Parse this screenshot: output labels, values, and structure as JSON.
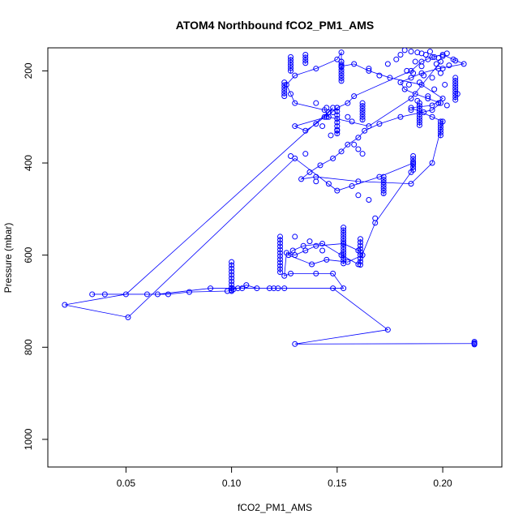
{
  "chart_data": {
    "type": "scatter",
    "title": "ATOM4 Northbound fCO2_PM1_AMS",
    "xlabel": "fCO2_PM1_AMS",
    "ylabel": "Pressure (mbar)",
    "xlim": [
      0.013,
      0.228
    ],
    "ylim": [
      1060,
      150
    ],
    "y_inverted": true,
    "x_ticks": [
      0.05,
      0.1,
      0.15,
      0.2
    ],
    "x_tick_labels": [
      "0.05",
      "0.10",
      "0.15",
      "0.20"
    ],
    "y_ticks": [
      200,
      400,
      600,
      800,
      1000
    ],
    "y_tick_labels": [
      "200",
      "400",
      "600",
      "800",
      "1000"
    ],
    "grid": false,
    "legend": "none",
    "series_color": "#0000ff",
    "series": [
      {
        "name": "fCO2_PM1_AMS",
        "style": "points-and-lines",
        "x": [
          0.215,
          0.13,
          0.174,
          0.148,
          0.12,
          0.105,
          0.1,
          0.09,
          0.065,
          0.04,
          0.034,
          0.06,
          0.07,
          0.08,
          0.098,
          0.1,
          0.101,
          0.103,
          0.107,
          0.112,
          0.118,
          0.122,
          0.125,
          0.153,
          0.148,
          0.14,
          0.128,
          0.125,
          0.126,
          0.13,
          0.135,
          0.14,
          0.153,
          0.16,
          0.162,
          0.155,
          0.145,
          0.138,
          0.127,
          0.129,
          0.134,
          0.143,
          0.152,
          0.16,
          0.168,
          0.185,
          0.186,
          0.17,
          0.15,
          0.13,
          0.051,
          0.021,
          0.05,
          0.148,
          0.146,
          0.144,
          0.14,
          0.135,
          0.13,
          0.145,
          0.15,
          0.155,
          0.158,
          0.185,
          0.19,
          0.195,
          0.2,
          0.205,
          0.21,
          0.198,
          0.19,
          0.185,
          0.18,
          0.182,
          0.187,
          0.193,
          0.199,
          0.195,
          0.18,
          0.17,
          0.163,
          0.16,
          0.155,
          0.152,
          0.148,
          0.142,
          0.137,
          0.133,
          0.14,
          0.16,
          0.185,
          0.195,
          0.2,
          0.185,
          0.195,
          0.2,
          0.19,
          0.175,
          0.165,
          0.158,
          0.152,
          0.152,
          0.152,
          0.15,
          0.14,
          0.13,
          0.126,
          0.128,
          0.13,
          0.144,
          0.146,
          0.165,
          0.185,
          0.199
        ],
        "y": [
          792,
          793,
          762,
          672,
          672,
          672,
          672,
          672,
          685,
          685,
          685,
          685,
          685,
          680,
          678,
          676,
          674,
          672,
          665,
          672,
          672,
          672,
          672,
          672,
          640,
          640,
          640,
          645,
          595,
          600,
          590,
          580,
          575,
          590,
          600,
          615,
          610,
          620,
          600,
          590,
          580,
          575,
          600,
          620,
          530,
          420,
          400,
          430,
          460,
          390,
          735,
          708,
          685,
          280,
          290,
          300,
          315,
          330,
          320,
          300,
          280,
          270,
          255,
          200,
          180,
          170,
          165,
          175,
          185,
          195,
          205,
          215,
          225,
          240,
          250,
          260,
          270,
          285,
          300,
          315,
          330,
          345,
          360,
          375,
          390,
          405,
          420,
          435,
          430,
          440,
          445,
          400,
          310,
          280,
          275,
          260,
          230,
          215,
          200,
          185,
          190,
          180,
          160,
          175,
          195,
          210,
          230,
          250,
          270,
          285,
          300,
          320,
          260,
          180
        ]
      }
    ],
    "stacked_runs": [
      {
        "x": 0.125,
        "y_start": 225,
        "y_end": 255,
        "step": 6
      },
      {
        "x": 0.128,
        "y_start": 170,
        "y_end": 205,
        "step": 6
      },
      {
        "x": 0.135,
        "y_start": 165,
        "y_end": 185,
        "step": 6
      },
      {
        "x": 0.152,
        "y_start": 180,
        "y_end": 225,
        "step": 6
      },
      {
        "x": 0.15,
        "y_start": 280,
        "y_end": 340,
        "step": 8
      },
      {
        "x": 0.153,
        "y_start": 540,
        "y_end": 620,
        "step": 6
      },
      {
        "x": 0.199,
        "y_start": 310,
        "y_end": 345,
        "step": 6
      },
      {
        "x": 0.206,
        "y_start": 215,
        "y_end": 265,
        "step": 6
      },
      {
        "x": 0.186,
        "y_start": 385,
        "y_end": 420,
        "step": 6
      },
      {
        "x": 0.172,
        "y_start": 430,
        "y_end": 470,
        "step": 6
      },
      {
        "x": 0.1,
        "y_start": 615,
        "y_end": 680,
        "step": 7
      },
      {
        "x": 0.123,
        "y_start": 560,
        "y_end": 640,
        "step": 7
      },
      {
        "x": 0.161,
        "y_start": 565,
        "y_end": 625,
        "step": 7
      },
      {
        "x": 0.162,
        "y_start": 270,
        "y_end": 310,
        "step": 6
      },
      {
        "x": 0.189,
        "y_start": 270,
        "y_end": 320,
        "step": 6
      },
      {
        "x": 0.215,
        "y_start": 788,
        "y_end": 795,
        "step": 3
      }
    ],
    "cluster_points": {
      "x": [
        0.182,
        0.185,
        0.188,
        0.19,
        0.192,
        0.194,
        0.196,
        0.198,
        0.2,
        0.202,
        0.193,
        0.187,
        0.19,
        0.197,
        0.2,
        0.203,
        0.206,
        0.183,
        0.186,
        0.191,
        0.195,
        0.199,
        0.189,
        0.184,
        0.17,
        0.165,
        0.174,
        0.178,
        0.18,
        0.196,
        0.201,
        0.207,
        0.193,
        0.188,
        0.198,
        0.202,
        0.185,
        0.191,
        0.195,
        0.15,
        0.158,
        0.16,
        0.162,
        0.14,
        0.145,
        0.148,
        0.155,
        0.157,
        0.143,
        0.147,
        0.128,
        0.135,
        0.14,
        0.146,
        0.157,
        0.16,
        0.165,
        0.168,
        0.13,
        0.137,
        0.143
      ],
      "y": [
        155,
        158,
        160,
        162,
        165,
        158,
        170,
        172,
        168,
        162,
        175,
        180,
        190,
        185,
        195,
        188,
        178,
        200,
        205,
        210,
        215,
        205,
        225,
        230,
        210,
        195,
        185,
        175,
        165,
        240,
        230,
        250,
        255,
        265,
        270,
        275,
        285,
        290,
        300,
        330,
        360,
        370,
        380,
        270,
        280,
        290,
        300,
        310,
        320,
        340,
        385,
        380,
        440,
        445,
        450,
        470,
        480,
        520,
        560,
        570,
        590
      ]
    }
  }
}
